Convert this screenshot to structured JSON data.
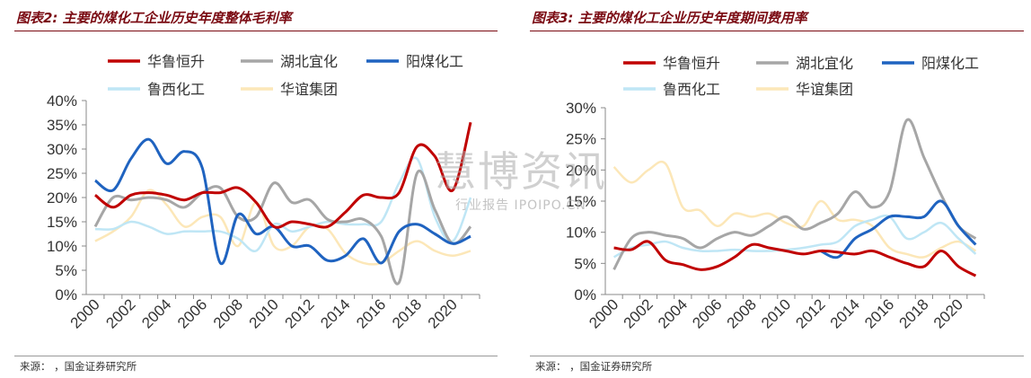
{
  "watermark": {
    "main": "慧博资讯",
    "sub": "行业报告 IPOIPO.CN"
  },
  "charts": [
    {
      "title": "图表2: 主要的煤化工企业历史年度整体毛利率",
      "source": "来源：          ，国金证券研究所"
    },
    {
      "title": "图表3: 主要的煤化工企业历史年度期间费用率",
      "source": "来源：          ，国金证券研究所"
    }
  ],
  "chart_data": [
    {
      "type": "line",
      "x": [
        2000,
        2001,
        2002,
        2003,
        2004,
        2005,
        2006,
        2007,
        2008,
        2009,
        2010,
        2011,
        2012,
        2013,
        2014,
        2015,
        2016,
        2017,
        2018,
        2019,
        2020,
        2021
      ],
      "xticks": [
        "2000",
        "2002",
        "2004",
        "2006",
        "2008",
        "2010",
        "2012",
        "2014",
        "2016",
        "2018",
        "2020"
      ],
      "ylim": [
        0,
        0.4
      ],
      "yticks": [
        "0%",
        "5%",
        "10%",
        "15%",
        "20%",
        "25%",
        "30%",
        "35%",
        "40%"
      ],
      "legend_rows": [
        [
          "华鲁恒升",
          "湖北宜化",
          "阳煤化工"
        ],
        [
          "鲁西化工",
          "华谊集团"
        ]
      ],
      "series": [
        {
          "name": "华鲁恒升",
          "color": "#c00000",
          "width": 3,
          "values": [
            0.205,
            0.18,
            0.205,
            0.21,
            0.205,
            0.195,
            0.21,
            0.21,
            0.22,
            0.19,
            0.14,
            0.15,
            0.145,
            0.14,
            0.17,
            0.205,
            0.2,
            0.21,
            0.305,
            0.285,
            0.215,
            0.355
          ]
        },
        {
          "name": "湖北宜化",
          "color": "#a6a6a6",
          "width": 3,
          "values": [
            0.14,
            0.2,
            0.195,
            0.2,
            0.195,
            0.18,
            0.21,
            0.22,
            0.16,
            0.16,
            0.23,
            0.19,
            0.195,
            0.155,
            0.15,
            0.155,
            0.12,
            0.025,
            0.25,
            0.175,
            0.105,
            0.14
          ]
        },
        {
          "name": "阳煤化工",
          "color": "#1f63c0",
          "width": 3,
          "values": [
            0.235,
            0.215,
            0.28,
            0.32,
            0.27,
            0.295,
            0.26,
            0.065,
            0.165,
            0.125,
            0.14,
            0.1,
            0.1,
            0.07,
            0.08,
            0.115,
            0.065,
            0.13,
            0.145,
            0.125,
            0.105,
            0.12
          ]
        },
        {
          "name": "鲁西化工",
          "color": "#bfe6f5",
          "width": 2.5,
          "values": [
            0.135,
            0.135,
            0.15,
            0.14,
            0.125,
            0.13,
            0.13,
            0.13,
            0.115,
            0.09,
            0.145,
            0.13,
            0.14,
            0.15,
            0.145,
            0.145,
            0.15,
            0.23,
            0.28,
            0.16,
            0.11,
            0.2
          ]
        },
        {
          "name": "华谊集团",
          "color": "#fce7b8",
          "width": 2.5,
          "values": [
            0.11,
            0.13,
            0.16,
            0.215,
            0.185,
            0.14,
            0.16,
            0.16,
            0.1,
            0.19,
            0.1,
            0.1,
            0.14,
            0.135,
            0.085,
            0.065,
            0.065,
            0.09,
            0.11,
            0.09,
            0.08,
            0.09
          ]
        }
      ]
    },
    {
      "type": "line",
      "x": [
        2000,
        2001,
        2002,
        2003,
        2004,
        2005,
        2006,
        2007,
        2008,
        2009,
        2010,
        2011,
        2012,
        2013,
        2014,
        2015,
        2016,
        2017,
        2018,
        2019,
        2020,
        2021
      ],
      "xticks": [
        "2000",
        "2002",
        "2004",
        "2006",
        "2008",
        "2010",
        "2012",
        "2014",
        "2016",
        "2018",
        "2020"
      ],
      "ylim": [
        0,
        0.3
      ],
      "yticks": [
        "0%",
        "5%",
        "10%",
        "15%",
        "20%",
        "25%",
        "30%"
      ],
      "legend_rows": [
        [
          "华鲁恒升",
          "湖北宜化",
          "阳煤化工"
        ],
        [
          "鲁西化工",
          "华谊集团"
        ]
      ],
      "series": [
        {
          "name": "华鲁恒升",
          "color": "#c00000",
          "width": 3,
          "values": [
            0.075,
            0.072,
            0.085,
            0.055,
            0.048,
            0.04,
            0.045,
            0.06,
            0.08,
            0.075,
            0.07,
            0.065,
            0.07,
            0.068,
            0.065,
            0.07,
            0.06,
            0.05,
            0.045,
            0.07,
            0.045,
            0.03
          ]
        },
        {
          "name": "湖北宜化",
          "color": "#a6a6a6",
          "width": 3,
          "values": [
            0.04,
            0.09,
            0.1,
            0.095,
            0.09,
            0.075,
            0.09,
            0.1,
            0.095,
            0.11,
            0.125,
            0.105,
            0.115,
            0.13,
            0.165,
            0.14,
            0.165,
            0.28,
            0.22,
            0.16,
            0.11,
            0.09
          ]
        },
        {
          "name": "阳煤化工",
          "color": "#1f63c0",
          "width": 3,
          "values": [
            null,
            null,
            null,
            null,
            null,
            null,
            null,
            null,
            null,
            null,
            null,
            null,
            0.07,
            0.06,
            0.09,
            0.105,
            0.125,
            0.125,
            0.125,
            0.15,
            0.11,
            0.08
          ]
        },
        {
          "name": "鲁西化工",
          "color": "#bfe6f5",
          "width": 2.5,
          "values": [
            0.06,
            0.075,
            0.08,
            0.085,
            0.075,
            0.07,
            0.07,
            0.072,
            0.07,
            0.07,
            0.072,
            0.075,
            0.08,
            0.085,
            0.11,
            0.12,
            0.125,
            0.09,
            0.1,
            0.115,
            0.09,
            0.065
          ]
        },
        {
          "name": "华谊集团",
          "color": "#fce7b8",
          "width": 2.5,
          "values": [
            0.205,
            0.18,
            0.2,
            0.21,
            0.14,
            0.135,
            0.11,
            0.13,
            0.125,
            0.13,
            0.115,
            0.11,
            0.15,
            0.12,
            0.12,
            0.11,
            0.075,
            0.065,
            0.06,
            0.075,
            0.085,
            0.07
          ]
        }
      ]
    }
  ]
}
